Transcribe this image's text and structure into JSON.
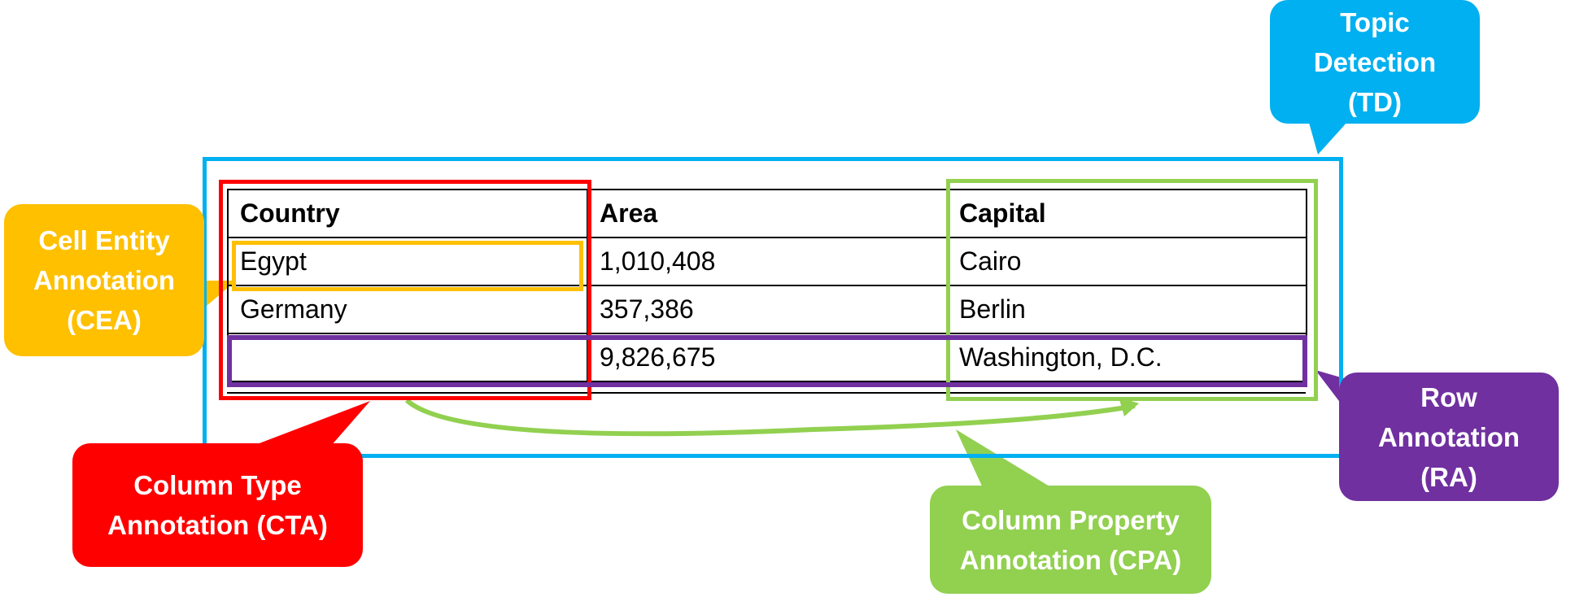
{
  "table": {
    "headers": [
      "Country",
      "Area",
      "Capital"
    ],
    "rows": [
      [
        "Egypt",
        "1,010,408",
        "Cairo"
      ],
      [
        "Germany",
        "357,386",
        "Berlin"
      ],
      [
        "",
        "9,826,675",
        "Washington, D.C."
      ]
    ]
  },
  "labels": {
    "td": [
      "Topic",
      "Detection",
      "(TD)"
    ],
    "cea": [
      "Cell Entity",
      "Annotation",
      "(CEA)"
    ],
    "cta": [
      "Column Type",
      "Annotation (CTA)"
    ],
    "cpa": [
      "Column Property",
      "Annotation (CPA)"
    ],
    "ra": [
      "Row",
      "Annotation",
      "(RA)"
    ]
  },
  "colors": {
    "td": "#00b0f0",
    "cea": "#ffc000",
    "cta": "#ff0000",
    "cpa": "#92d050",
    "ra": "#7030a0"
  }
}
